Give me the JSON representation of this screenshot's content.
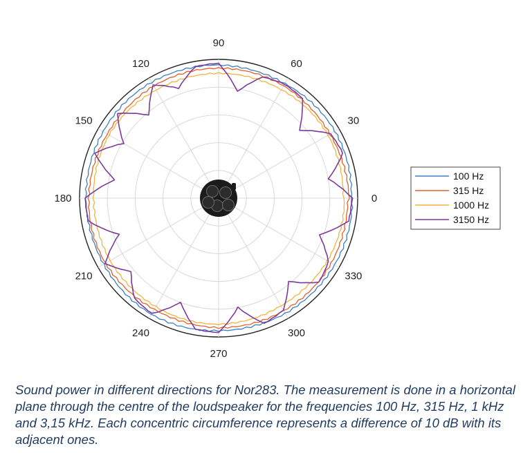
{
  "chart_data": {
    "type": "polar-line",
    "angle_unit": "degrees",
    "angle_ticks": [
      0,
      30,
      60,
      90,
      120,
      150,
      180,
      210,
      240,
      270,
      300,
      330
    ],
    "angle_tick_labels": [
      "0",
      "30",
      "60",
      "90",
      "120",
      "150",
      "180",
      "210",
      "240",
      "270",
      "300",
      "330"
    ],
    "radial_rings": 5,
    "radial_step_db": 10,
    "radial_tick_labels_shown": false,
    "grid": true,
    "legend_position": "right",
    "center_image": "loudspeaker-icon",
    "series": [
      {
        "name": "100 Hz",
        "color": "#3a7fc4",
        "angles": [
          0,
          30,
          60,
          90,
          120,
          150,
          180,
          210,
          240,
          270,
          300,
          330
        ],
        "values": [
          0.955,
          0.96,
          0.955,
          0.965,
          0.96,
          0.955,
          0.96,
          0.955,
          0.96,
          0.955,
          0.965,
          0.96
        ]
      },
      {
        "name": "315 Hz",
        "color": "#e0612e",
        "angles": [
          0,
          30,
          60,
          90,
          120,
          150,
          180,
          210,
          240,
          270,
          300,
          330
        ],
        "values": [
          0.935,
          0.93,
          0.935,
          0.93,
          0.935,
          0.93,
          0.93,
          0.935,
          0.93,
          0.935,
          0.93,
          0.935
        ]
      },
      {
        "name": "1000 Hz",
        "color": "#f0b43c",
        "angles": [
          0,
          30,
          60,
          90,
          120,
          150,
          180,
          210,
          240,
          270,
          300,
          330
        ],
        "values": [
          0.9,
          0.905,
          0.9,
          0.905,
          0.9,
          0.905,
          0.9,
          0.905,
          0.9,
          0.905,
          0.9,
          0.905
        ]
      },
      {
        "name": "3150 Hz",
        "color": "#7b3a9a",
        "angles": [
          0,
          10,
          20,
          30,
          40,
          50,
          60,
          70,
          80,
          90,
          100,
          110,
          120,
          130,
          140,
          150,
          160,
          170,
          180,
          190,
          200,
          210,
          220,
          230,
          240,
          250,
          260,
          270,
          280,
          290,
          300,
          310,
          320,
          330,
          340,
          350
        ],
        "values": [
          0.96,
          0.8,
          0.95,
          0.93,
          0.76,
          0.94,
          0.95,
          0.93,
          0.78,
          0.97,
          0.96,
          0.84,
          0.94,
          0.78,
          0.95,
          0.79,
          0.95,
          0.76,
          0.96,
          0.95,
          0.76,
          0.94,
          0.82,
          0.94,
          0.96,
          0.8,
          0.96,
          0.97,
          0.8,
          0.96,
          0.93,
          0.78,
          0.94,
          0.91,
          0.77,
          0.95
        ]
      }
    ]
  },
  "caption": "Sound power in different directions for Nor283. The measurement is done in a horizontal plane through the centre of the loudspeaker for the frequencies 100 Hz, 315 Hz, 1 kHz and 3,15 kHz. Each concentric circumference represents a difference of 10 dB with its adjacent ones."
}
